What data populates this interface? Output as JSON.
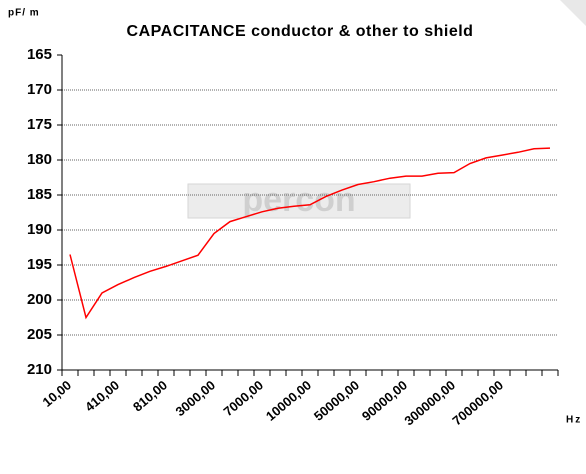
{
  "chart_data": {
    "type": "line",
    "title": "CAPACITANCE conductor & other  to shield",
    "y_label": "pF/ m",
    "x_label": "Hz",
    "watermark": "percon",
    "categories": [
      "10,00",
      null,
      null,
      "410,00",
      null,
      null,
      "810,00",
      null,
      null,
      "3000,00",
      null,
      null,
      "7000,00",
      null,
      null,
      "10000,00",
      null,
      null,
      "50000,00",
      null,
      null,
      "90000,00",
      null,
      null,
      "300000,00",
      null,
      null,
      "700000,00",
      null,
      null,
      null
    ],
    "series": [
      {
        "name": "capacitance",
        "color": "#ff0000",
        "values": [
          193.5,
          202.5,
          199,
          197.8,
          196.8,
          195.9,
          195.2,
          194.4,
          193.6,
          190.5,
          188.8,
          188.1,
          187.4,
          186.9,
          186.6,
          186.4,
          185.2,
          184.3,
          183.5,
          183.1,
          182.6,
          182.3,
          182.3,
          181.9,
          181.8,
          180.5,
          179.7,
          179.3,
          178.9,
          178.4,
          178.3
        ]
      }
    ],
    "ylim": [
      165,
      210
    ],
    "y_reversed": true,
    "yticks": [
      165,
      170,
      175,
      180,
      185,
      190,
      195,
      200,
      205,
      210
    ],
    "grid": true
  }
}
